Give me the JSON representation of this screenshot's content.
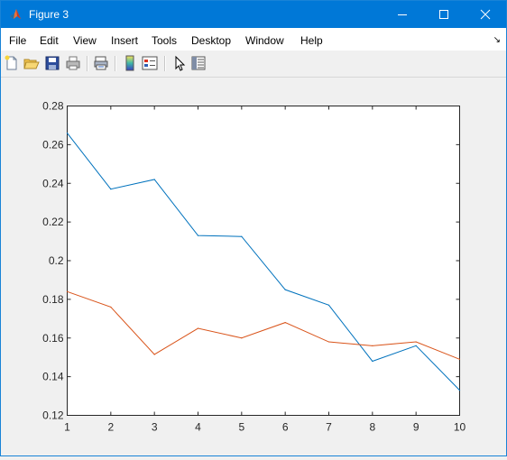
{
  "window": {
    "title": "Figure 3"
  },
  "menu": [
    "File",
    "Edit",
    "View",
    "Insert",
    "Tools",
    "Desktop",
    "Window",
    "Help"
  ],
  "menu_overflow_icon": "dock-arrow-icon",
  "toolbar_icons": [
    "new-figure-icon",
    "open-file-icon",
    "save-icon",
    "print-icon",
    "print-preview-icon",
    "colorbar-icon",
    "legend-icon",
    "edit-plot-pointer-icon",
    "property-inspector-icon"
  ],
  "colors": {
    "titlebar": "#0078d7",
    "series1": "#0072bd",
    "series2": "#d95319"
  },
  "chart_data": {
    "type": "line",
    "title": "",
    "xlabel": "",
    "ylabel": "",
    "x": [
      1,
      2,
      3,
      4,
      5,
      6,
      7,
      8,
      9,
      10
    ],
    "xlim": [
      1,
      10
    ],
    "ylim": [
      0.12,
      0.28
    ],
    "xticks": [
      "1",
      "2",
      "3",
      "4",
      "5",
      "6",
      "7",
      "8",
      "9",
      "10"
    ],
    "yticks": [
      "0.12",
      "0.14",
      "0.16",
      "0.18",
      "0.2",
      "0.22",
      "0.24",
      "0.26",
      "0.28"
    ],
    "ytick_values": [
      0.12,
      0.14,
      0.16,
      0.18,
      0.2,
      0.22,
      0.24,
      0.26,
      0.28
    ],
    "grid": false,
    "series": [
      {
        "color": "#0072bd",
        "values": [
          0.266,
          0.237,
          0.242,
          0.213,
          0.2125,
          0.185,
          0.177,
          0.148,
          0.156,
          0.133
        ]
      },
      {
        "color": "#d95319",
        "values": [
          0.184,
          0.176,
          0.1515,
          0.165,
          0.16,
          0.168,
          0.158,
          0.156,
          0.158,
          0.149
        ]
      }
    ]
  }
}
